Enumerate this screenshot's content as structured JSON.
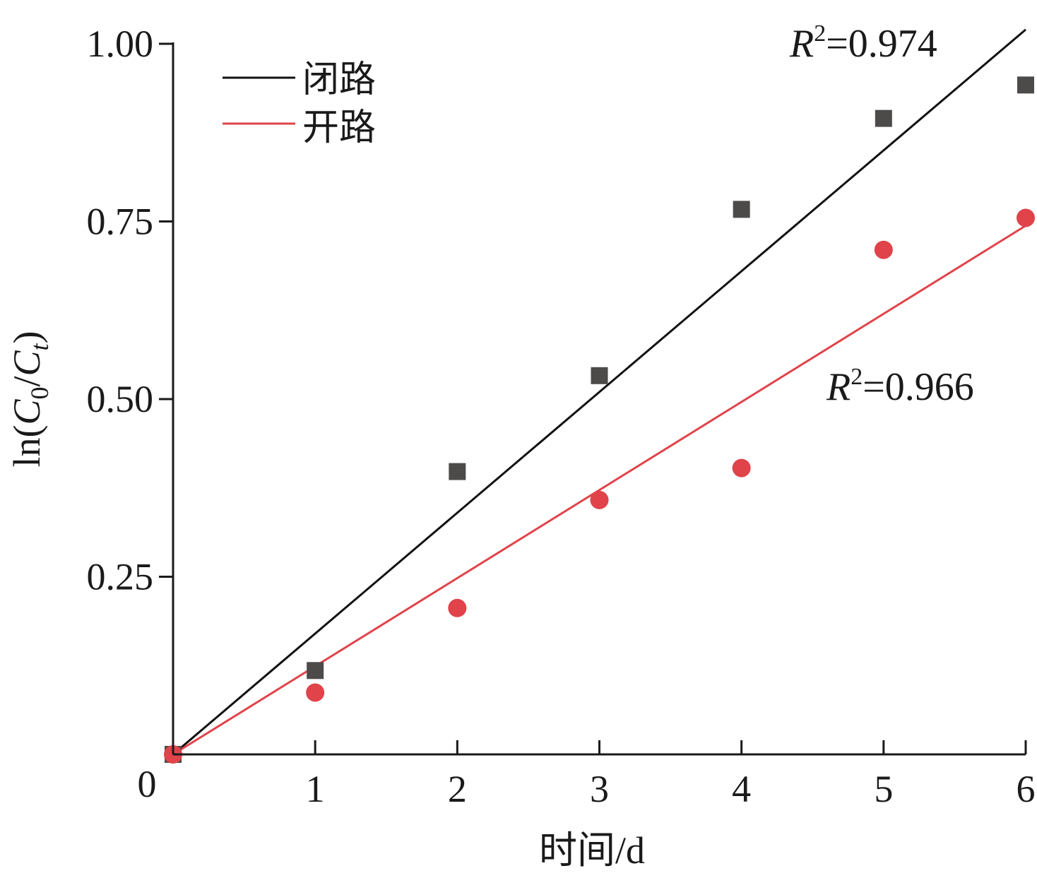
{
  "chart_data": {
    "type": "scatter",
    "xlabel": "时间/d",
    "ylabel_parts": {
      "prefix": "ln(",
      "c0": "C",
      "c0_sub": "0",
      "slash": "/",
      "ct": "C",
      "ct_sub": "t",
      "suffix": ")"
    },
    "xlim": [
      0,
      6
    ],
    "ylim": [
      0,
      1.0
    ],
    "x_ticks": [
      1,
      2,
      3,
      4,
      5,
      6
    ],
    "x_origin_label": "0",
    "y_ticks": [
      0.25,
      0.5,
      0.75,
      1.0
    ],
    "y_tick_labels": [
      "0.25",
      "0.50",
      "0.75",
      "1.00"
    ],
    "legend_position": "top-left",
    "series": [
      {
        "name": "闭路",
        "marker": "square",
        "color": "#4d4a4a",
        "line_color": "#111111",
        "x": [
          0,
          1,
          2,
          3,
          4,
          5,
          6
        ],
        "y": [
          0.0,
          0.118,
          0.398,
          0.533,
          0.767,
          0.895,
          0.942
        ],
        "fit": {
          "slope": 0.17,
          "intercept": 0.0
        },
        "r2_text": {
          "r": "R",
          "sup": "2",
          "value": "=0.974"
        }
      },
      {
        "name": "开路",
        "marker": "circle",
        "color": "#e0434a",
        "line_color": "#e0434a",
        "x": [
          0,
          1,
          2,
          3,
          4,
          5,
          6
        ],
        "y": [
          0.0,
          0.087,
          0.206,
          0.358,
          0.403,
          0.71,
          0.755
        ],
        "fit": {
          "slope": 0.124,
          "intercept": 0.0
        },
        "r2_text": {
          "r": "R",
          "sup": "2",
          "value": "=0.966"
        }
      }
    ]
  }
}
